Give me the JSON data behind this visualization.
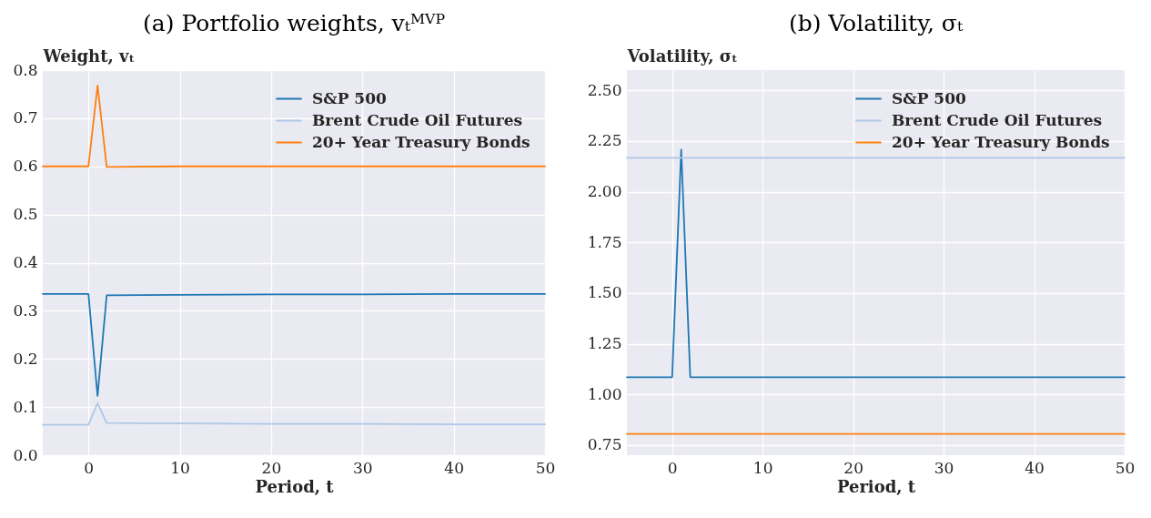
{
  "chart_data": [
    {
      "type": "line",
      "title": "(a) Portfolio weights, vₜᴹⱽᴾ",
      "xlabel": "Period, t",
      "ylabel": "Weight, vₜ",
      "x": [
        -5,
        0,
        1,
        2,
        10,
        20,
        30,
        40,
        50
      ],
      "series": [
        {
          "name": "S&P 500",
          "color": "#1f77b4",
          "values": [
            0.335,
            0.335,
            0.123,
            0.332,
            0.333,
            0.334,
            0.334,
            0.335,
            0.335
          ]
        },
        {
          "name": "Brent Crude Oil Futures",
          "color": "#aec7e8",
          "values": [
            0.063,
            0.063,
            0.108,
            0.067,
            0.066,
            0.065,
            0.065,
            0.064,
            0.064
          ]
        },
        {
          "name": "20+ Year Treasury Bonds",
          "color": "#ff7f0e",
          "values": [
            0.6,
            0.6,
            0.768,
            0.599,
            0.6,
            0.6,
            0.6,
            0.6,
            0.6
          ]
        }
      ],
      "xlim": [
        -5,
        50
      ],
      "xticks": [
        0,
        10,
        20,
        30,
        40,
        50
      ],
      "ylim": [
        0,
        0.8
      ],
      "yticks": [
        {
          "value": 0,
          "label": "0.0"
        },
        0.1,
        0.2,
        0.3,
        0.4,
        0.5,
        0.6,
        0.7,
        0.8
      ],
      "grid": true,
      "legend": "top right"
    },
    {
      "type": "line",
      "title": "(b) Volatility, σₜ",
      "xlabel": "Period, t",
      "ylabel": "Volatility, σₜ",
      "x": [
        -5,
        0,
        1,
        2,
        10,
        20,
        30,
        40,
        50
      ],
      "series": [
        {
          "name": "S&P 500",
          "color": "#1f77b4",
          "values": [
            1.085,
            1.085,
            2.207,
            1.085,
            1.085,
            1.085,
            1.085,
            1.085,
            1.085
          ]
        },
        {
          "name": "Brent Crude Oil Futures",
          "color": "#aec7e8",
          "values": [
            2.167,
            2.167,
            2.167,
            2.167,
            2.167,
            2.167,
            2.167,
            2.167,
            2.167
          ]
        },
        {
          "name": "20+ Year Treasury Bonds",
          "color": "#ff7f0e",
          "values": [
            0.805,
            0.805,
            0.805,
            0.805,
            0.805,
            0.805,
            0.805,
            0.805,
            0.805
          ]
        }
      ],
      "xlim": [
        -5,
        50
      ],
      "xticks": [
        0,
        10,
        20,
        30,
        40,
        50
      ],
      "ylim": [
        0.7,
        2.6
      ],
      "yticks": [
        0.75,
        {
          "value": 1,
          "label": "1.00"
        },
        1.25,
        {
          "value": 1.5,
          "label": "1.50"
        },
        1.75,
        {
          "value": 2,
          "label": "2.00"
        },
        2.25,
        {
          "value": 2.5,
          "label": "2.50"
        }
      ],
      "grid": true,
      "legend": "top right"
    }
  ]
}
